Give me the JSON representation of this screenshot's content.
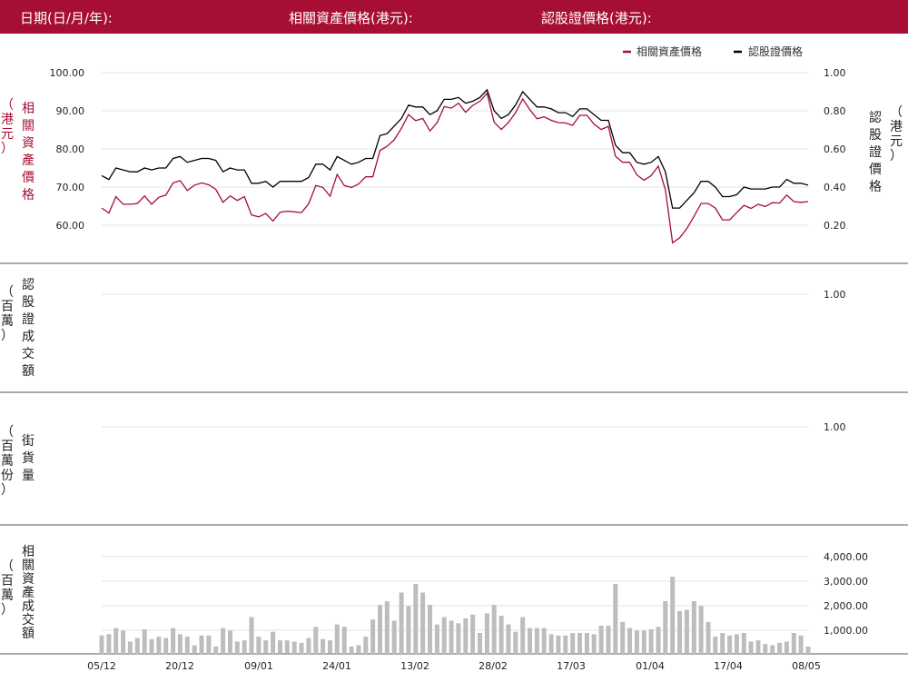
{
  "header": {
    "date_label": "日期(日/月/年):",
    "underlying_label": "相關資產價格(港元):",
    "warrant_label": "認股證價格(港元):"
  },
  "colors": {
    "header_bg": "#a60e33",
    "underlying_line": "#a60e33",
    "warrant_line": "#000000",
    "volume_bar": "#bdbdbd",
    "grid": "#e3e3e3"
  },
  "chart_data": [
    {
      "type": "line",
      "legend": [
        "相關資產價格",
        "認股證價格"
      ],
      "legend_position": "top-right",
      "left_axis_label": [
        "相",
        "關",
        "資",
        "產",
        "價",
        "格"
      ],
      "left_axis_unit": [
        "（",
        "港",
        "元",
        "）"
      ],
      "right_axis_label": [
        "認",
        "股",
        "證",
        "價",
        "格"
      ],
      "right_axis_unit": [
        "（",
        "港",
        "元",
        "）"
      ],
      "left_ticks": [
        "100.00",
        "90.00",
        "80.00",
        "70.00",
        "60.00"
      ],
      "right_ticks": [
        "1.00",
        "0.80",
        "0.60",
        "0.40",
        "0.20"
      ],
      "ylim_left": [
        60,
        100
      ],
      "ylim_right": [
        0.2,
        1.0
      ],
      "series": [
        {
          "name": "相關資產價格",
          "values": [
            64.5,
            63.2,
            67.5,
            65.5,
            65.5,
            65.7,
            67.7,
            65.5,
            67.3,
            67.9,
            71.1,
            71.7,
            69.1,
            70.5,
            71.1,
            70.6,
            69.4,
            66,
            67.7,
            66.5,
            67.5,
            62.7,
            62.2,
            63.1,
            61.1,
            63.4,
            63.7,
            63.5,
            63.3,
            65.6,
            70.4,
            69.9,
            67.6,
            73.3,
            70.4,
            69.9,
            70.8,
            72.7,
            72.7,
            79.6,
            80.7,
            82.4,
            85.4,
            89,
            87.4,
            88,
            84.7,
            86.9,
            91.1,
            90.7,
            92,
            89.6,
            91.4,
            92.5,
            94.6,
            87,
            85.1,
            86.9,
            89.5,
            93.1,
            90.3,
            87.9,
            88.4,
            87.5,
            86.9,
            86.8,
            86.2,
            88.8,
            88.8,
            86.5,
            85.1,
            85.9,
            78.1,
            76.5,
            76.5,
            73.2,
            71.8,
            73,
            75.5,
            69.3,
            55.4,
            56.7,
            59.1,
            62.3,
            65.7,
            65.7,
            64.5,
            61.4,
            61.4,
            63.3,
            65.2,
            64.4,
            65.5,
            64.9,
            65.9,
            65.8,
            67.9,
            66.2,
            66,
            66.2
          ],
          "color": "#a60e33"
        },
        {
          "name": "認股證價格",
          "values": [
            0.46,
            0.44,
            0.5,
            0.49,
            0.48,
            0.48,
            0.5,
            0.49,
            0.5,
            0.5,
            0.55,
            0.56,
            0.53,
            0.54,
            0.55,
            0.55,
            0.54,
            0.48,
            0.5,
            0.49,
            0.49,
            0.42,
            0.42,
            0.43,
            0.4,
            0.43,
            0.43,
            0.43,
            0.43,
            0.45,
            0.52,
            0.52,
            0.49,
            0.56,
            0.54,
            0.52,
            0.53,
            0.55,
            0.55,
            0.67,
            0.68,
            0.72,
            0.76,
            0.83,
            0.82,
            0.82,
            0.78,
            0.8,
            0.86,
            0.86,
            0.87,
            0.84,
            0.85,
            0.87,
            0.91,
            0.8,
            0.76,
            0.78,
            0.83,
            0.9,
            0.86,
            0.82,
            0.82,
            0.81,
            0.79,
            0.79,
            0.77,
            0.81,
            0.81,
            0.78,
            0.75,
            0.75,
            0.62,
            0.58,
            0.58,
            0.53,
            0.52,
            0.53,
            0.56,
            0.48,
            0.29,
            0.29,
            0.33,
            0.37,
            0.43,
            0.43,
            0.4,
            0.35,
            0.35,
            0.36,
            0.4,
            0.39,
            0.39,
            0.39,
            0.4,
            0.4,
            0.44,
            0.42,
            0.42,
            0.41
          ],
          "color": "#000000"
        }
      ]
    },
    {
      "type": "bar",
      "left_axis_label": [
        "認",
        "股",
        "證",
        "成",
        "交",
        "額"
      ],
      "left_axis_unit": [
        "（",
        "百",
        "萬",
        "）"
      ],
      "right_ticks": [
        "1.00"
      ],
      "values": []
    },
    {
      "type": "bar",
      "left_axis_label": [
        "街",
        "貨",
        "量"
      ],
      "left_axis_unit": [
        "（",
        "百",
        "萬",
        "份",
        "）"
      ],
      "right_ticks": [
        "1.00"
      ],
      "values": []
    },
    {
      "type": "bar",
      "left_axis_label": [
        "相",
        "關",
        "資",
        "產",
        "成",
        "交",
        "額"
      ],
      "left_axis_unit": [
        "（",
        "百",
        "萬",
        "）"
      ],
      "right_ticks": [
        "4,000.00",
        "3,000.00",
        "2,000.00",
        "1,000.00"
      ],
      "ylim": [
        0,
        4000
      ],
      "values": [
        750,
        800,
        1050,
        950,
        500,
        650,
        1000,
        600,
        700,
        650,
        1050,
        800,
        700,
        350,
        750,
        750,
        300,
        1050,
        950,
        500,
        550,
        1500,
        700,
        550,
        900,
        550,
        550,
        500,
        450,
        650,
        1100,
        600,
        550,
        1200,
        1100,
        300,
        350,
        700,
        1400,
        2000,
        2150,
        1350,
        2500,
        1950,
        2850,
        2500,
        2000,
        1200,
        1500,
        1350,
        1250,
        1450,
        1600,
        850,
        1650,
        2000,
        1550,
        1200,
        900,
        1500,
        1050,
        1050,
        1050,
        800,
        750,
        750,
        850,
        850,
        850,
        800,
        1150,
        1150,
        2850,
        1300,
        1050,
        950,
        950,
        1000,
        1100,
        2150,
        3150,
        1750,
        1800,
        2150,
        1950,
        1300,
        700,
        850,
        750,
        800,
        850,
        500,
        550,
        400,
        350,
        450,
        500,
        850,
        750,
        300
      ],
      "x_ticks": [
        "05/12",
        "20/12",
        "09/01",
        "24/01",
        "13/02",
        "28/02",
        "17/03",
        "01/04",
        "17/04",
        "08/05"
      ]
    }
  ]
}
